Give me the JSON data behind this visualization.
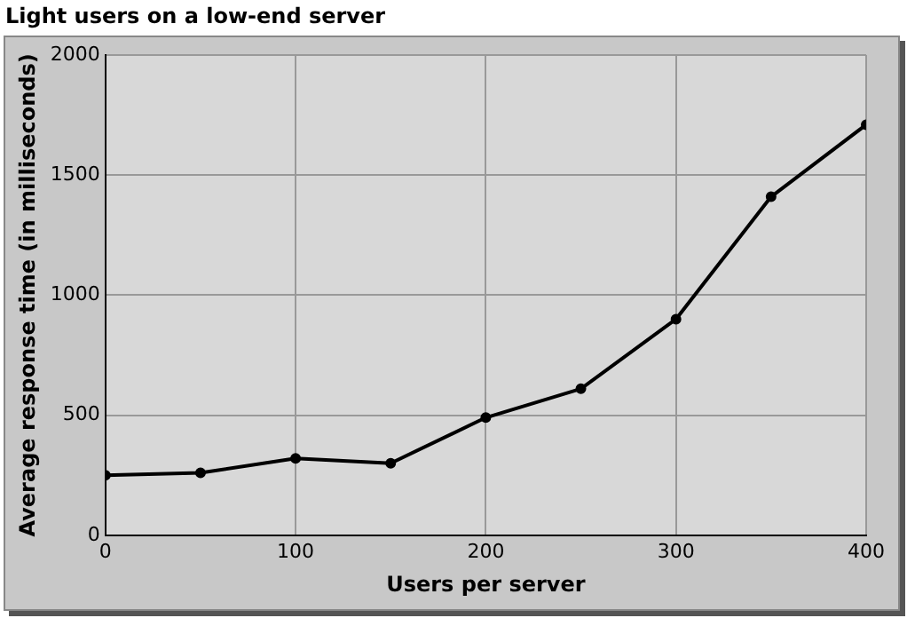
{
  "chart_data": {
    "type": "line",
    "title": "Light users on a low-end server",
    "xlabel": "Users per server",
    "ylabel": "Average response time (in milliseconds)",
    "x": [
      0,
      50,
      100,
      150,
      200,
      250,
      300,
      350,
      400
    ],
    "series": [
      {
        "color": "#000000",
        "values": [
          250,
          260,
          320,
          300,
          490,
          610,
          900,
          1410,
          1710
        ]
      }
    ],
    "xlim": [
      0,
      400
    ],
    "xticks": [
      0,
      100,
      200,
      300,
      400
    ],
    "ylim": [
      0,
      2000
    ],
    "yticks": [
      0,
      500,
      1000,
      1500,
      2000
    ],
    "grid": true,
    "legend": false,
    "marker": "circle",
    "line_style": "solid"
  }
}
